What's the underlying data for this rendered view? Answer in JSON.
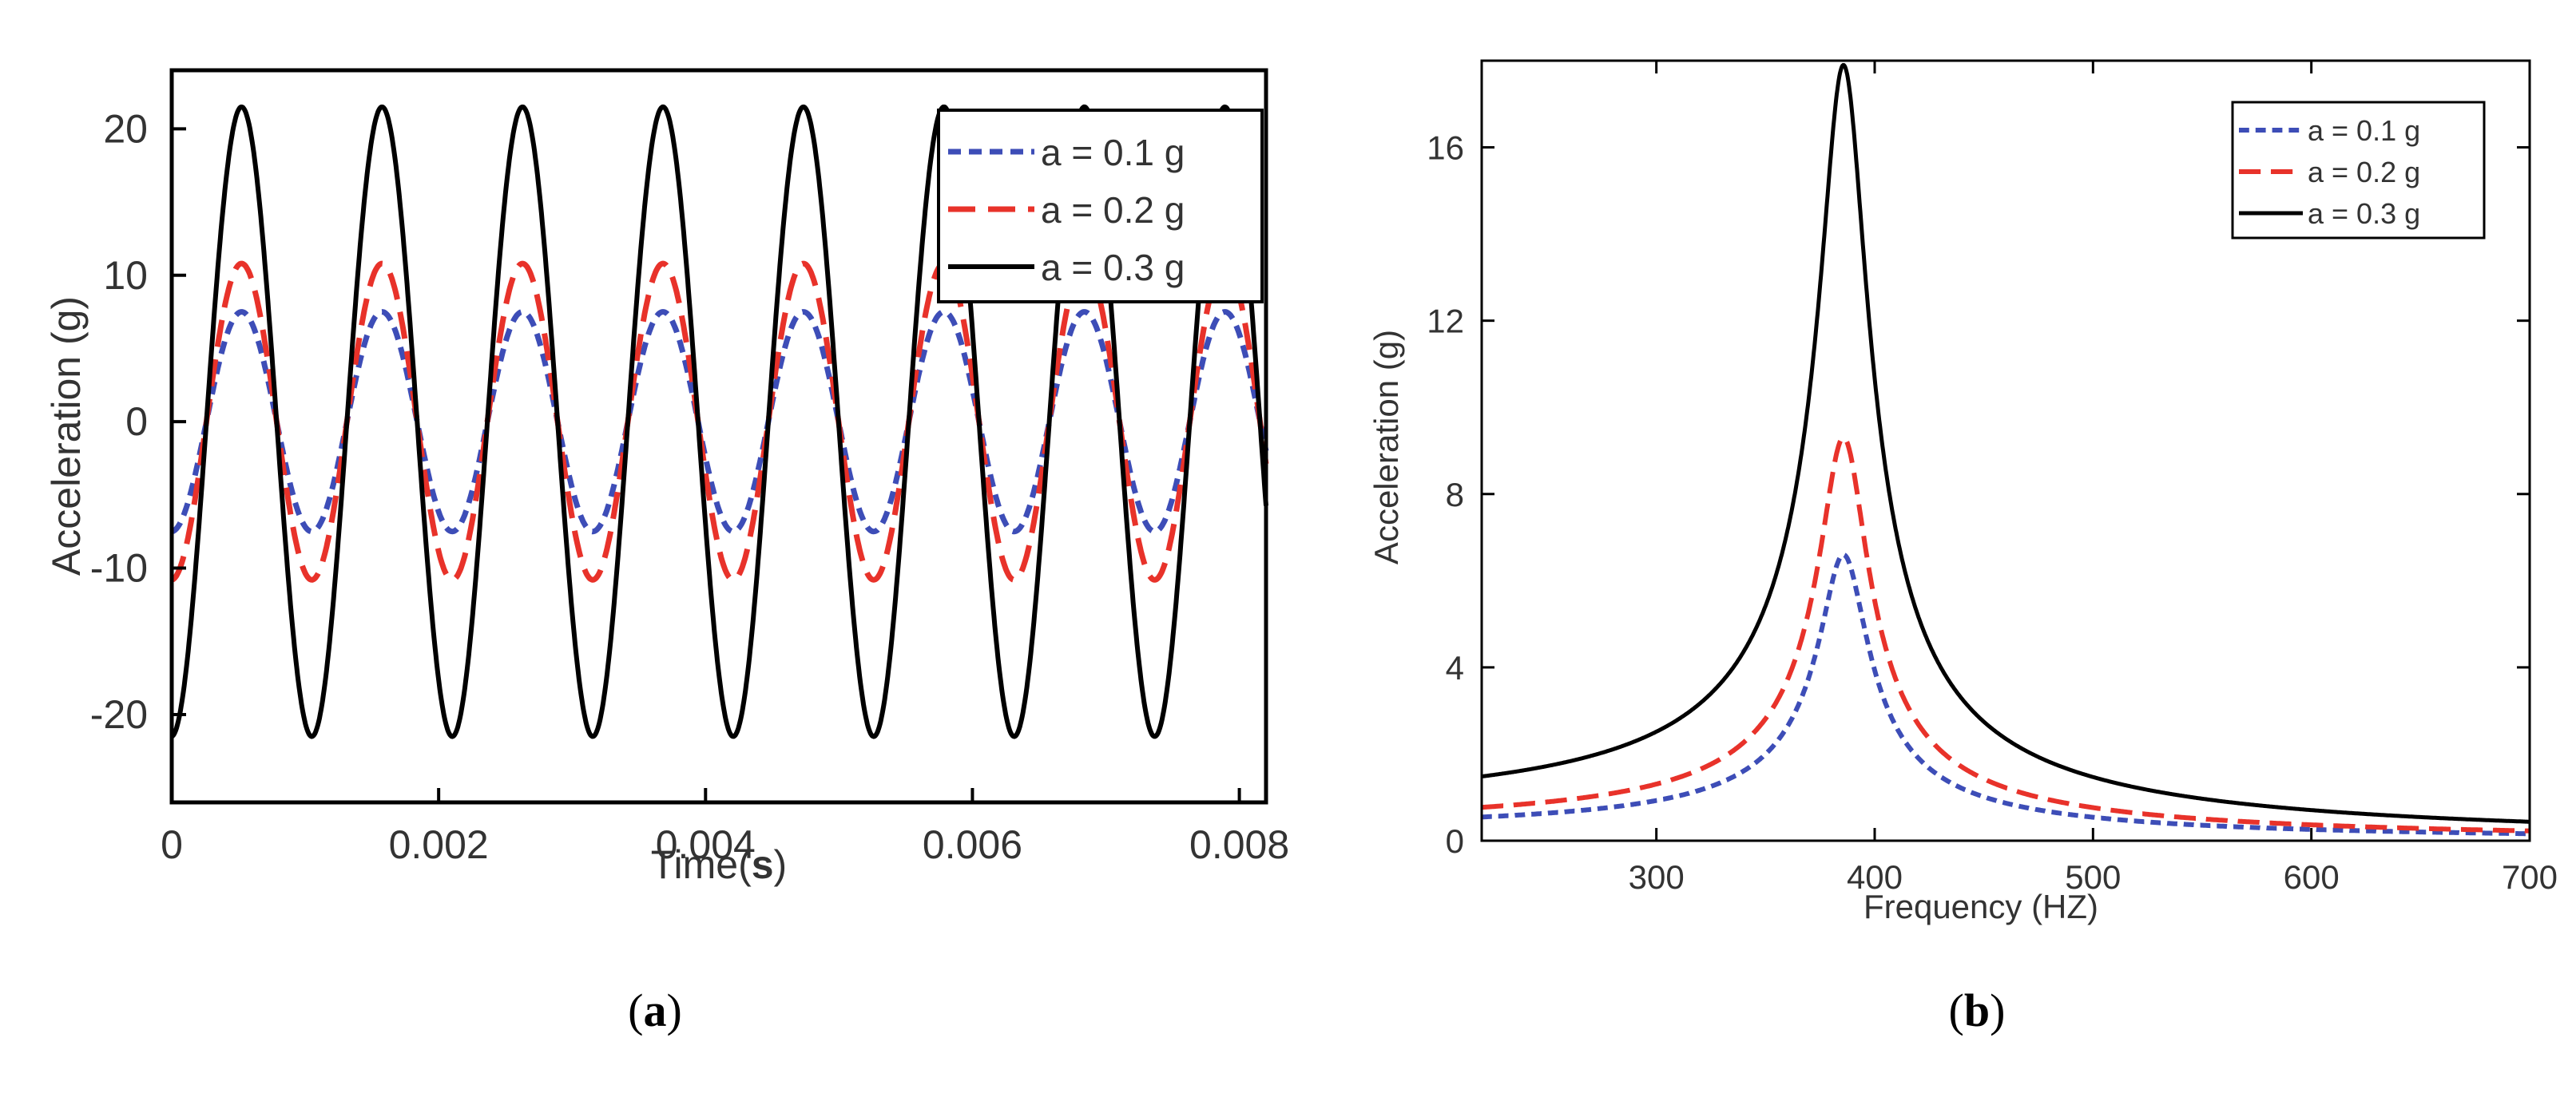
{
  "chart_data": [
    {
      "type": "line",
      "panel_label": "a",
      "xlabel": "Time",
      "xlabel_unit": "s",
      "ylabel": "Acceleration (g)",
      "xlim": [
        0,
        0.0082
      ],
      "ylim": [
        -26,
        24
      ],
      "xticks": [
        0,
        0.002,
        0.004,
        0.006,
        0.008
      ],
      "xtick_labels": [
        "0",
        "0.002",
        "0.004",
        "0.006",
        "0.008"
      ],
      "yticks": [
        -20,
        -10,
        0,
        10,
        20
      ],
      "ytick_labels": [
        "-20",
        "-10",
        "0",
        "10",
        "20"
      ],
      "frequency_hz": 950,
      "phase_shift": 0.00026,
      "legend_position": "top-right",
      "series": [
        {
          "name": "a = 0.1 g",
          "amplitude": 7.5,
          "flat_top": 6,
          "color": "#3d4db7",
          "dash": "short-dash"
        },
        {
          "name": "a = 0.2 g",
          "amplitude": 10.8,
          "flat_top": 6,
          "color": "#e8322a",
          "dash": "long-dash"
        },
        {
          "name": "a = 0.3 g",
          "amplitude": 21.5,
          "flat_top": 0,
          "color": "#000000",
          "dash": "solid"
        }
      ]
    },
    {
      "type": "line",
      "panel_label": "b",
      "xlabel": "Frequency (HZ)",
      "ylabel": "Acceleration (g)",
      "xlim": [
        220,
        700
      ],
      "ylim": [
        0,
        18
      ],
      "xticks": [
        300,
        400,
        500,
        600,
        700
      ],
      "xtick_labels": [
        "300",
        "400",
        "500",
        "600",
        "700"
      ],
      "yticks": [
        0,
        4,
        8,
        12,
        16
      ],
      "ytick_labels": [
        "0",
        "4",
        "8",
        "12",
        "16"
      ],
      "resonance_hz": 386,
      "legend_position": "top-right",
      "series": [
        {
          "name": "a = 0.1 g",
          "peak": 6.6,
          "color": "#3d4db7",
          "dash": "short-dash"
        },
        {
          "name": "a = 0.2 g",
          "peak": 9.3,
          "color": "#e8322a",
          "dash": "long-dash"
        },
        {
          "name": "a = 0.3 g",
          "peak": 17.9,
          "color": "#000000",
          "dash": "solid"
        }
      ]
    }
  ]
}
